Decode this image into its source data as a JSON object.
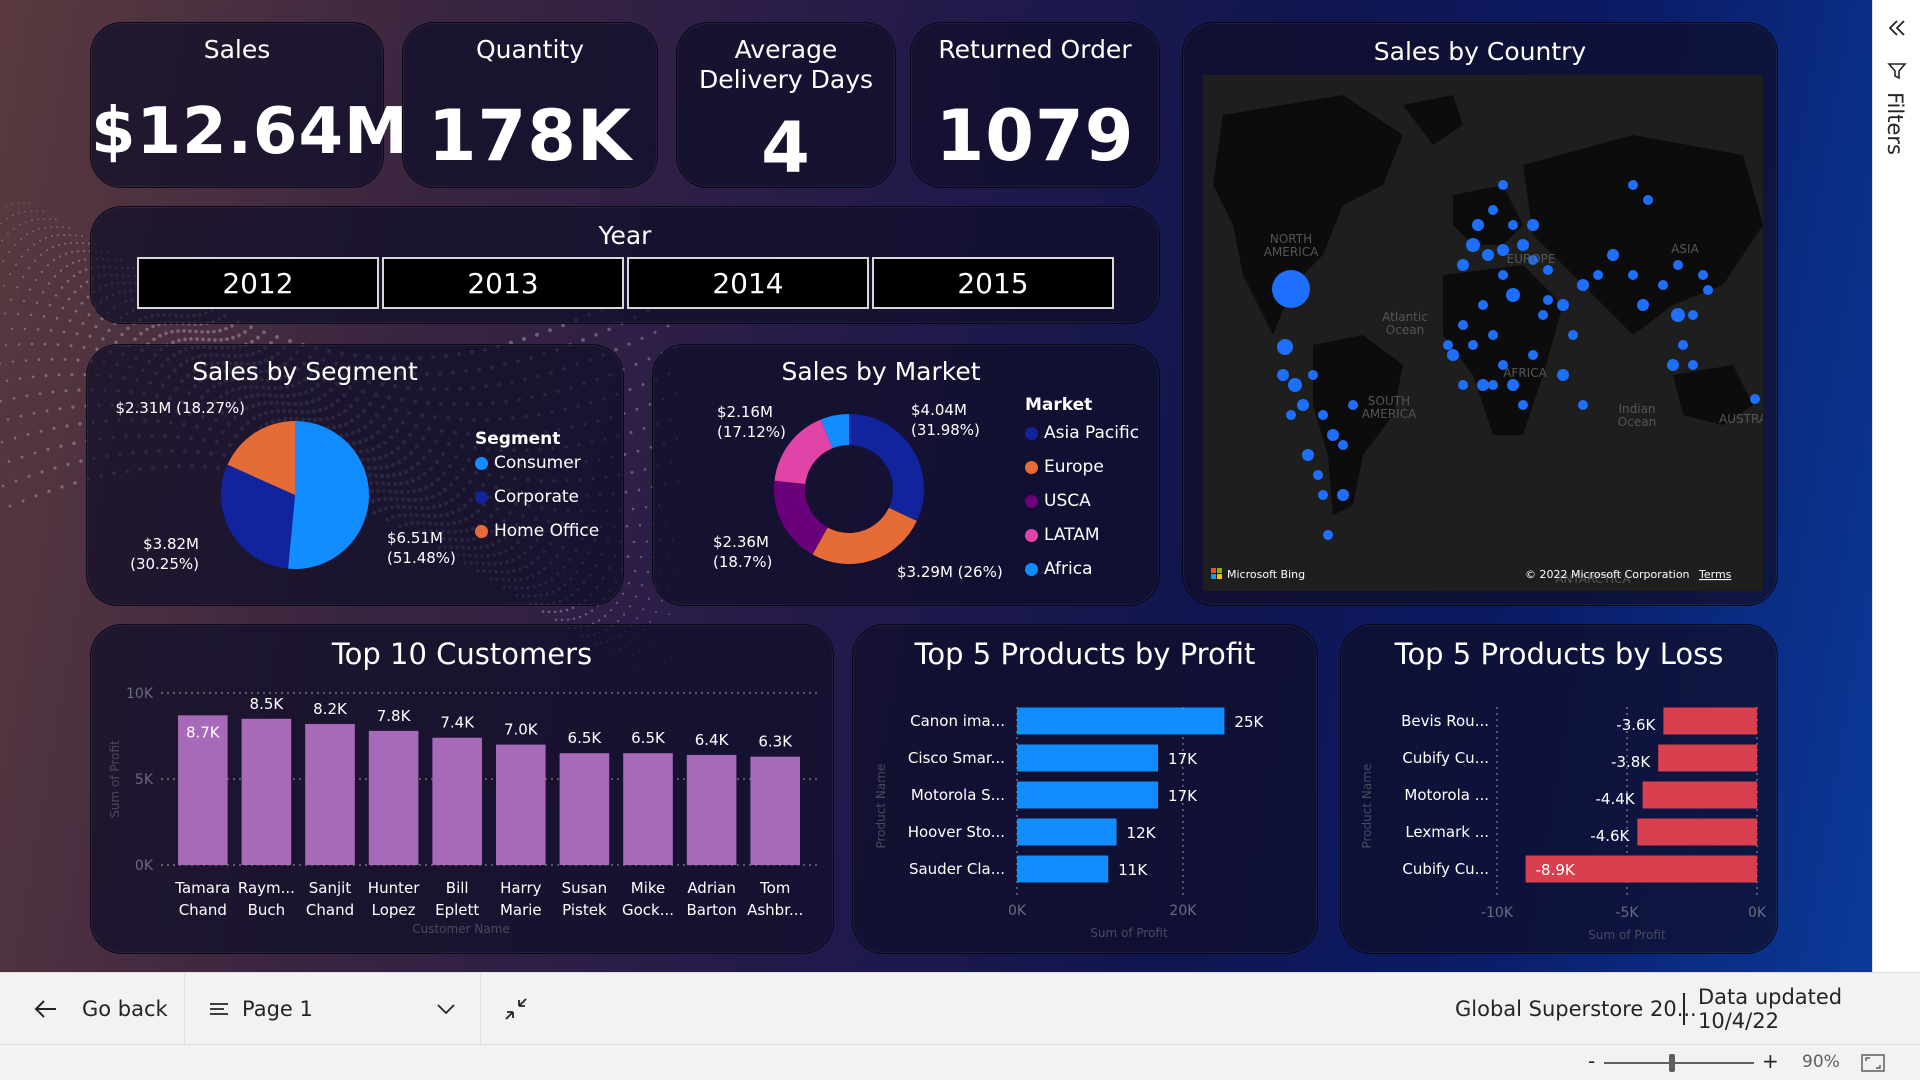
{
  "kpis": {
    "sales": {
      "label": "Sales",
      "value": "$12.64M"
    },
    "quantity": {
      "label": "Quantity",
      "value": "178K"
    },
    "delivery": {
      "label": "Average Delivery Days",
      "value": "4"
    },
    "returned": {
      "label": "Returned Order",
      "value": "1079"
    }
  },
  "year_slicer": {
    "label": "Year",
    "options": [
      "2012",
      "2013",
      "2014",
      "2015"
    ]
  },
  "map": {
    "title": "Sales by Country",
    "labels": [
      "NORTH AMERICA",
      "Atlantic Ocean",
      "EUROPE",
      "ASIA",
      "AFRICA",
      "SOUTH AMERICA",
      "Indian Ocean",
      "AUSTRA",
      "ANTARCTICA"
    ],
    "attribution_left": "Microsoft Bing",
    "attribution_right": "© 2022 Microsoft Corporation",
    "terms": "Terms",
    "bubble_color": "#1f6fff"
  },
  "chart_data": [
    {
      "type": "pie",
      "title": "Sales by Segment",
      "legend_title": "Segment",
      "legend_position": "right",
      "slices": [
        {
          "name": "Consumer",
          "value": 6.51,
          "label_value": "$6.51M",
          "label_pct": "(51.48%)",
          "color": "#118dff"
        },
        {
          "name": "Corporate",
          "value": 3.82,
          "label_value": "$3.82M",
          "label_pct": "(30.25%)",
          "color": "#12239e"
        },
        {
          "name": "Home Office",
          "value": 2.31,
          "label_value": "$2.31M",
          "label_pct": "(18.27%)",
          "color": "#e66c37"
        }
      ]
    },
    {
      "type": "pie",
      "title": "Sales by Market",
      "legend_title": "Market",
      "legend_position": "right",
      "donut": true,
      "slices": [
        {
          "name": "Asia Pacific",
          "value": 4.04,
          "label_value": "$4.04M",
          "label_pct": "(31.98%)",
          "color": "#12239e"
        },
        {
          "name": "Europe",
          "value": 3.29,
          "label_value": "$3.29M",
          "label_pct": "(26%)",
          "color": "#e66c37"
        },
        {
          "name": "USCA",
          "value": 2.36,
          "label_value": "$2.36M",
          "label_pct": "(18.7%)",
          "color": "#6b007b"
        },
        {
          "name": "LATAM",
          "value": 2.16,
          "label_value": "$2.16M",
          "label_pct": "(17.12%)",
          "color": "#e044a7"
        },
        {
          "name": "Africa",
          "value": 0.77,
          "label_value": "",
          "label_pct": "",
          "color": "#118dff"
        }
      ]
    },
    {
      "type": "bar",
      "title": "Top 10 Customers",
      "xlabel": "Customer Name",
      "ylabel": "Sum of Profit",
      "ylim": [
        0,
        10000
      ],
      "yticks": [
        "0K",
        "5K",
        "10K"
      ],
      "ytick_values": [
        0,
        5000,
        10000
      ],
      "categories": [
        [
          "Tamara",
          "Chand"
        ],
        [
          "Raym...",
          "Buch"
        ],
        [
          "Sanjit",
          "Chand"
        ],
        [
          "Hunter",
          "Lopez"
        ],
        [
          "Bill",
          "Eplett"
        ],
        [
          "Harry",
          "Marie"
        ],
        [
          "Susan",
          "Pistek"
        ],
        [
          "Mike",
          "Gock..."
        ],
        [
          "Adrian",
          "Barton"
        ],
        [
          "Tom",
          "Ashbr..."
        ]
      ],
      "values": [
        8700,
        8500,
        8200,
        7800,
        7400,
        7000,
        6500,
        6500,
        6400,
        6300
      ],
      "data_labels": [
        "8.7K",
        "8.5K",
        "8.2K",
        "7.8K",
        "7.4K",
        "7.0K",
        "6.5K",
        "6.5K",
        "6.4K",
        "6.3K"
      ],
      "color": "#a66ab8"
    },
    {
      "type": "bar",
      "orientation": "horizontal",
      "title": "Top 5 Products by Profit",
      "xlabel": "Sum of Profit",
      "ylabel": "Product Name",
      "xlim": [
        0,
        27000
      ],
      "xticks": [
        "0K",
        "20K"
      ],
      "xtick_values": [
        0,
        20000
      ],
      "categories": [
        "Canon ima...",
        "Cisco Smar...",
        "Motorola S...",
        "Hoover Sto...",
        "Sauder Cla..."
      ],
      "values": [
        25000,
        17000,
        17000,
        12000,
        11000
      ],
      "data_labels": [
        "25K",
        "17K",
        "17K",
        "12K",
        "11K"
      ],
      "color": "#118dff"
    },
    {
      "type": "bar",
      "orientation": "horizontal",
      "title": "Top 5 Products by Loss",
      "xlabel": "Sum of Profit",
      "ylabel": "Product Name",
      "xlim": [
        -10000,
        0
      ],
      "xticks": [
        "-10K",
        "-5K",
        "0K"
      ],
      "xtick_values": [
        -10000,
        -5000,
        0
      ],
      "categories": [
        "Bevis Rou...",
        "Cubify Cu...",
        "Motorola ...",
        "Lexmark ...",
        "Cubify Cu..."
      ],
      "values": [
        -3600,
        -3800,
        -4400,
        -4600,
        -8900
      ],
      "data_labels": [
        "-3.6K",
        "-3.8K",
        "-4.4K",
        "-4.6K",
        "-8.9K"
      ],
      "color": "#d9404f"
    }
  ],
  "bottom_bar": {
    "go_back": "Go back",
    "page": "Page 1",
    "report_name": "Global Superstore 20...",
    "data_updated": "Data updated 10/4/22"
  },
  "zoom": {
    "minus": "-",
    "plus": "+",
    "value": "90%",
    "level": 0.45
  },
  "filters": {
    "label": "Filters"
  }
}
